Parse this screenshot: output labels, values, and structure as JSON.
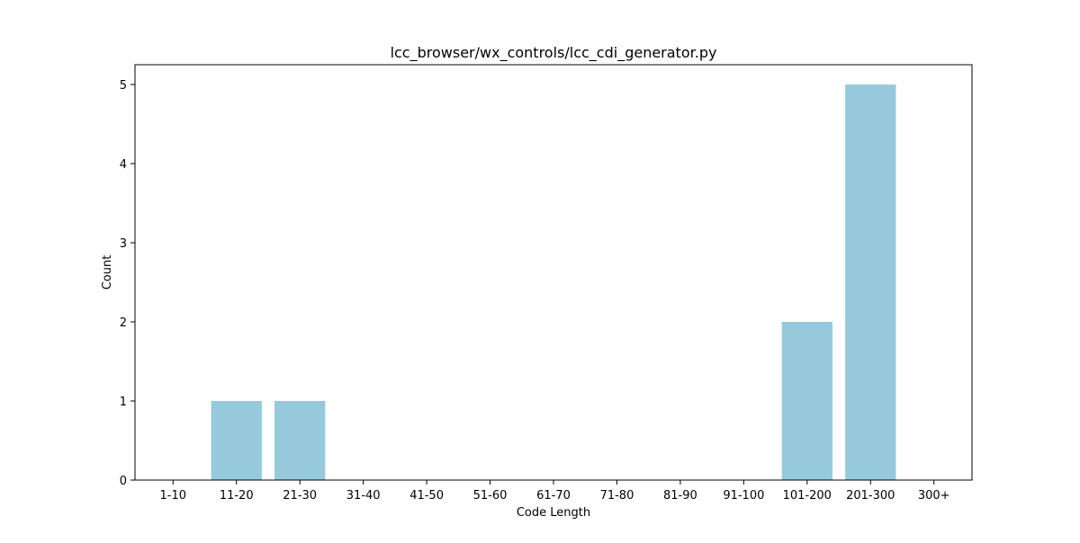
{
  "chart_data": {
    "type": "bar",
    "title": "lcc_browser/wx_controls/lcc_cdi_generator.py",
    "xlabel": "Code Length",
    "ylabel": "Count",
    "categories": [
      "1-10",
      "11-20",
      "21-30",
      "31-40",
      "41-50",
      "51-60",
      "61-70",
      "71-80",
      "81-90",
      "91-100",
      "101-200",
      "201-300",
      "300+"
    ],
    "values": [
      0,
      1,
      1,
      0,
      0,
      0,
      0,
      0,
      0,
      0,
      2,
      5,
      0
    ],
    "ylim": [
      0,
      5.25
    ],
    "yticks": [
      0,
      1,
      2,
      3,
      4,
      5
    ],
    "grid": false,
    "legend": "none",
    "bar_color": "#96c9dc"
  }
}
